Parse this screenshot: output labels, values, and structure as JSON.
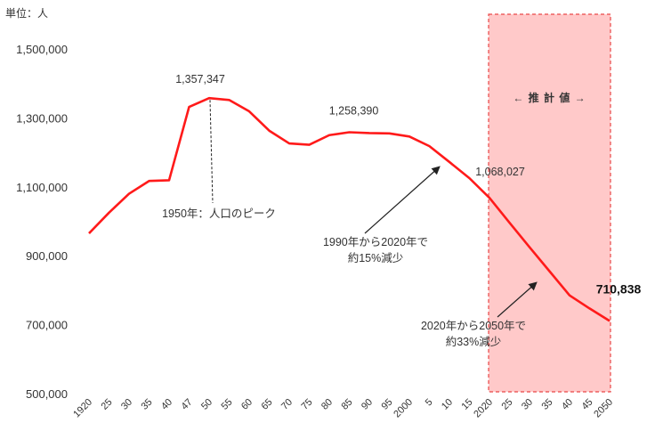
{
  "chart_data": {
    "type": "line",
    "unit_label": "単位：人",
    "ylim": [
      500000,
      1500000
    ],
    "yticks": [
      {
        "value": 500000,
        "label": "500,000"
      },
      {
        "value": 700000,
        "label": "700,000"
      },
      {
        "value": 900000,
        "label": "900,000"
      },
      {
        "value": 1100000,
        "label": "1,100,000"
      },
      {
        "value": 1300000,
        "label": "1,300,000"
      },
      {
        "value": 1500000,
        "label": "1,500,000"
      }
    ],
    "categories": [
      "1920",
      "25",
      "30",
      "35",
      "40",
      "47",
      "50",
      "55",
      "60",
      "65",
      "70",
      "75",
      "80",
      "85",
      "90",
      "95",
      "2000",
      "5",
      "10",
      "15",
      "2020",
      "25",
      "30",
      "35",
      "40",
      "45",
      "2050"
    ],
    "values": [
      965000,
      1025000,
      1080000,
      1117000,
      1119000,
      1332000,
      1357347,
      1352000,
      1319000,
      1263000,
      1226000,
      1222000,
      1250000,
      1258390,
      1256000,
      1255000,
      1246000,
      1218000,
      1172000,
      1125000,
      1068027,
      996000,
      925000,
      855000,
      785000,
      747000,
      710838
    ],
    "estimate_region": {
      "start": "2020",
      "end": "2050",
      "label": "← 推 計 値 →",
      "color": "#ffc9c9",
      "border_color": "#e94848"
    },
    "line_color": "#ff1a1a",
    "gridlines": false,
    "data_labels": [
      {
        "category": "50",
        "text": "1,357,347"
      },
      {
        "category": "85",
        "text": "1,258,390"
      },
      {
        "category": "2020",
        "text": "1,068,027"
      },
      {
        "category": "2050",
        "text": "710,838"
      }
    ],
    "annotations": [
      {
        "text_lines": [
          "1950年：人口のピーク"
        ]
      },
      {
        "text_lines": [
          "1990年から2020年で",
          "約15%減少"
        ]
      },
      {
        "text_lines": [
          "2020年から2050年で",
          "約33%減少"
        ]
      }
    ]
  }
}
